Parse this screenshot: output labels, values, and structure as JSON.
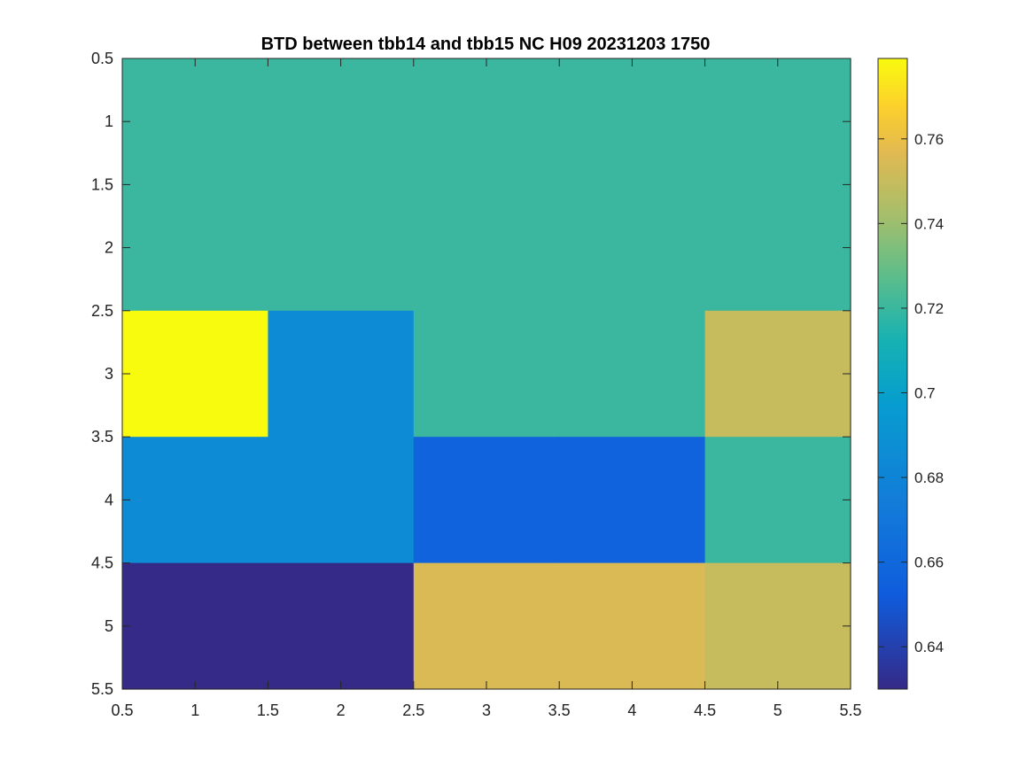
{
  "chart_data": {
    "type": "heatmap",
    "title": "BTD between tbb14 and tbb15 NC H09 20231203 1750",
    "xlabel": "",
    "ylabel": "",
    "xlim": [
      0.5,
      5.5
    ],
    "ylim": [
      0.5,
      5.5
    ],
    "y_reversed": true,
    "x_ticks": [
      0.5,
      1,
      1.5,
      2,
      2.5,
      3,
      3.5,
      4,
      4.5,
      5,
      5.5
    ],
    "x_tick_labels": [
      "0.5",
      "1",
      "1.5",
      "2",
      "2.5",
      "3",
      "3.5",
      "4",
      "4.5",
      "5",
      "5.5"
    ],
    "y_ticks": [
      0.5,
      1,
      1.5,
      2,
      2.5,
      3,
      3.5,
      4,
      4.5,
      5,
      5.5
    ],
    "y_tick_labels": [
      "0.5",
      "1",
      "1.5",
      "2",
      "2.5",
      "3",
      "3.5",
      "4",
      "4.5",
      "5",
      "5.5"
    ],
    "rows": [
      1,
      2,
      3,
      4,
      5
    ],
    "cols": [
      1,
      2,
      3,
      4,
      5
    ],
    "values": [
      [
        0.72,
        0.72,
        0.72,
        0.72,
        0.72
      ],
      [
        0.72,
        0.72,
        0.72,
        0.72,
        0.72
      ],
      [
        0.779,
        0.685,
        0.72,
        0.72,
        0.75
      ],
      [
        0.685,
        0.685,
        0.657,
        0.657,
        0.72
      ],
      [
        0.63,
        0.63,
        0.755,
        0.755,
        0.75
      ]
    ],
    "colormap": "parula",
    "clim": [
      0.63,
      0.779
    ],
    "colorbar": {
      "ticks": [
        0.64,
        0.66,
        0.68,
        0.7,
        0.72,
        0.74,
        0.76
      ],
      "tick_labels": [
        "0.64",
        "0.66",
        "0.68",
        "0.7",
        "0.72",
        "0.74",
        "0.76"
      ],
      "location": "right"
    },
    "grid": false
  }
}
